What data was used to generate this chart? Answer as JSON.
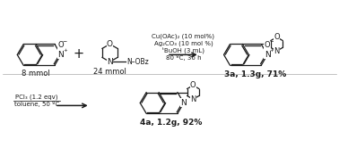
{
  "bg_color": "#ffffff",
  "reaction1": {
    "reagent1_label": "8 mmol",
    "reagent2_label": "24 mmol",
    "conditions": [
      "Cu(OAc)₂ (10 mol%)",
      "Ag₂CO₃ (10 mol %)",
      "ᵗBuOH (3 mL)",
      "80 ºC, 36 h"
    ],
    "product_label": "3a, 1.3g, 71%"
  },
  "reaction2": {
    "conditions": [
      "PCl₃ (1.2 eqv)",
      "toluene, 50 ºC"
    ],
    "product_label": "4a, 1.2g, 92%"
  },
  "lc": "#1a1a1a",
  "tc": "#1a1a1a",
  "fs": 6.5
}
